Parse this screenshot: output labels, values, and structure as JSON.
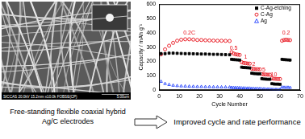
{
  "chart_data": {
    "type": "scatter",
    "x_label": "Cycle Number",
    "y_label": "Capacity / mAh g⁻¹",
    "x": [
      1,
      3,
      5,
      7,
      9,
      11,
      13,
      15,
      17,
      19,
      21,
      23,
      25,
      27,
      29,
      31,
      33,
      35,
      36,
      37,
      38,
      39,
      40,
      41,
      42,
      43,
      44,
      45,
      46,
      47,
      48,
      49,
      50,
      51,
      52,
      53,
      54,
      55,
      56,
      57,
      58,
      59,
      60,
      61,
      62,
      63,
      64,
      65
    ],
    "series": [
      {
        "name": "C-Ag-etching",
        "color": "#000000",
        "marker": "square",
        "values": [
          255,
          255,
          258,
          258,
          257,
          256,
          255,
          255,
          254,
          253,
          252,
          252,
          251,
          250,
          250,
          249,
          248,
          247,
          215,
          213,
          212,
          211,
          210,
          160,
          158,
          157,
          156,
          155,
          118,
          116,
          115,
          114,
          114,
          80,
          78,
          77,
          76,
          76,
          45,
          43,
          42,
          42,
          41,
          215,
          213,
          212,
          211,
          210
        ]
      },
      {
        "name": "C-Ag",
        "color": "#e8101a",
        "marker": "circle",
        "values": [
          250,
          285,
          310,
          330,
          345,
          352,
          355,
          355,
          353,
          350,
          350,
          348,
          347,
          346,
          345,
          345,
          344,
          343,
          265,
          255,
          250,
          248,
          246,
          195,
          190,
          188,
          186,
          185,
          150,
          148,
          147,
          146,
          145,
          112,
          110,
          109,
          108,
          108,
          82,
          80,
          79,
          78,
          78,
          345,
          350,
          352,
          350,
          349
        ]
      },
      {
        "name": "Ag",
        "color": "#2040ff",
        "marker": "triangle",
        "values": [
          60,
          45,
          38,
          33,
          30,
          28,
          27,
          26,
          25,
          24,
          24,
          23,
          23,
          22,
          22,
          21,
          21,
          20,
          18,
          17,
          17,
          16,
          16,
          14,
          14,
          13,
          13,
          13,
          11,
          11,
          10,
          10,
          10,
          8,
          8,
          7,
          7,
          7,
          5,
          5,
          5,
          4,
          4,
          20,
          19,
          19,
          19,
          18
        ]
      }
    ],
    "xlim": [
      0,
      70
    ],
    "xticks": [
      0,
      10,
      20,
      30,
      40,
      50,
      60,
      70
    ],
    "ylim": [
      0,
      600
    ],
    "yticks": [
      0,
      100,
      200,
      300,
      400,
      500,
      600
    ],
    "grid": false,
    "legend": "upper right",
    "annotations": [
      {
        "text": "0.2C",
        "x": 15,
        "y": 400
      },
      {
        "text": "0.5",
        "x": 37,
        "y": 295
      },
      {
        "text": "1",
        "x": 43,
        "y": 230
      },
      {
        "text": "2",
        "x": 47,
        "y": 180
      },
      {
        "text": "5",
        "x": 52,
        "y": 140
      },
      {
        "text": "10",
        "x": 57,
        "y": 105
      },
      {
        "text": "0.2",
        "x": 63,
        "y": 400
      }
    ]
  },
  "image": {
    "info_bar": "SICCAS 20.0kV 15.2mm x10.0k FOBSE(CP)",
    "scale_bar": "5.00um"
  },
  "captions": {
    "left": [
      "Free-standing flexible coaxial hybrid",
      "Ag/C electrodes"
    ],
    "right": "Improved cycle and rate performance"
  }
}
